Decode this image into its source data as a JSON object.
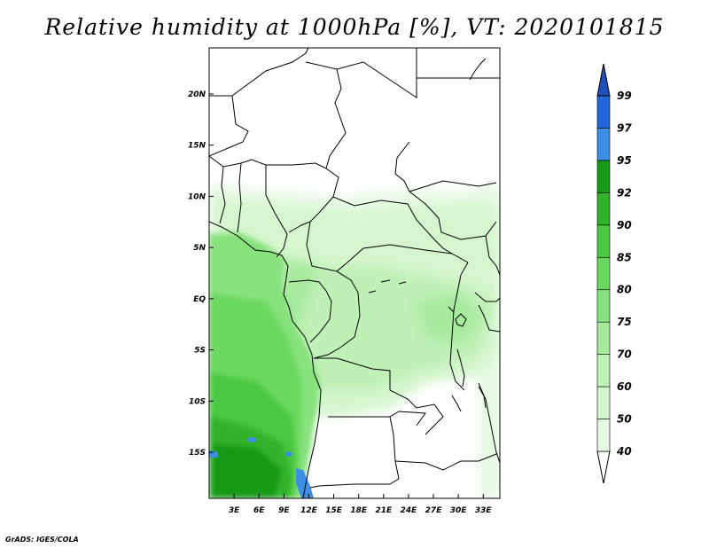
{
  "title": "Relative humidity at 1000hPa [%], VT: 2020101815",
  "credit": "GrADS: IGES/COLA",
  "map": {
    "lon_range": [
      0,
      35
    ],
    "lat_range": [
      -19.5,
      24.5
    ],
    "lon_ticks": [
      {
        "value": 3,
        "label": "3E"
      },
      {
        "value": 6,
        "label": "6E"
      },
      {
        "value": 9,
        "label": "9E"
      },
      {
        "value": 12,
        "label": "12E"
      },
      {
        "value": 15,
        "label": "15E"
      },
      {
        "value": 18,
        "label": "18E"
      },
      {
        "value": 21,
        "label": "21E"
      },
      {
        "value": 24,
        "label": "24E"
      },
      {
        "value": 27,
        "label": "27E"
      },
      {
        "value": 30,
        "label": "30E"
      },
      {
        "value": 33,
        "label": "33E"
      }
    ],
    "lat_ticks": [
      {
        "value": 20,
        "label": "20N"
      },
      {
        "value": 15,
        "label": "15N"
      },
      {
        "value": 10,
        "label": "10N"
      },
      {
        "value": 5,
        "label": "5N"
      },
      {
        "value": 0,
        "label": "EQ"
      },
      {
        "value": -5,
        "label": "5S"
      },
      {
        "value": -10,
        "label": "10S"
      },
      {
        "value": -15,
        "label": "15S"
      }
    ]
  },
  "colorbar": {
    "levels": [
      {
        "label": "40",
        "color": "#ffffff"
      },
      {
        "label": "50",
        "color": "#e6f9e3"
      },
      {
        "label": "60",
        "color": "#d4f5ce"
      },
      {
        "label": "70",
        "color": "#bff0b6"
      },
      {
        "label": "75",
        "color": "#a6eb9c"
      },
      {
        "label": "80",
        "color": "#87e27d"
      },
      {
        "label": "85",
        "color": "#6ad85f"
      },
      {
        "label": "90",
        "color": "#4cc843"
      },
      {
        "label": "92",
        "color": "#30b22a"
      },
      {
        "label": "95",
        "color": "#169a17"
      },
      {
        "label": "97",
        "color": "#3c8ee6"
      },
      {
        "label": "99",
        "color": "#2068d8"
      }
    ],
    "top_color": "#1e50b8"
  }
}
